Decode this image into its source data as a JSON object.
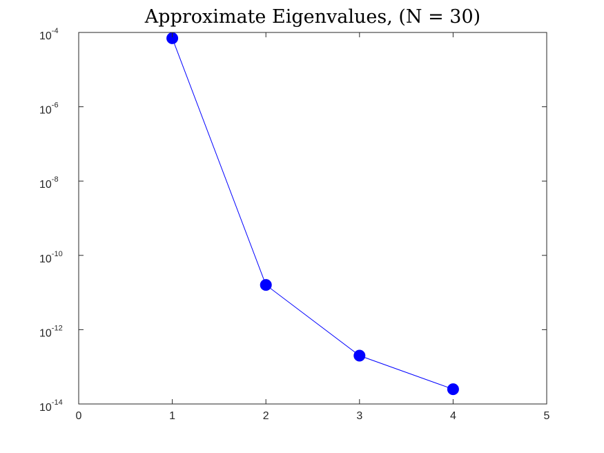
{
  "chart_data": {
    "type": "line",
    "title": "Approximate Eigenvalues, (N = 30)",
    "xlabel": "",
    "ylabel": "",
    "xlim": [
      0,
      5
    ],
    "ylim": [
      1e-14,
      0.0001
    ],
    "yscale": "log",
    "grid": false,
    "legend": "none",
    "x_ticks": [
      "0",
      "1",
      "2",
      "3",
      "4",
      "5"
    ],
    "y_ticks": [
      {
        "base": "10",
        "exp": "-14"
      },
      {
        "base": "10",
        "exp": "-12"
      },
      {
        "base": "10",
        "exp": "-10"
      },
      {
        "base": "10",
        "exp": "-8"
      },
      {
        "base": "10",
        "exp": "-6"
      },
      {
        "base": "10",
        "exp": "-4"
      }
    ],
    "series": [
      {
        "color": "#0000ff",
        "marker": "circle",
        "x": [
          1,
          2,
          3,
          4
        ],
        "y": [
          7e-05,
          1.6e-11,
          2e-13,
          2.5e-14
        ]
      }
    ]
  }
}
